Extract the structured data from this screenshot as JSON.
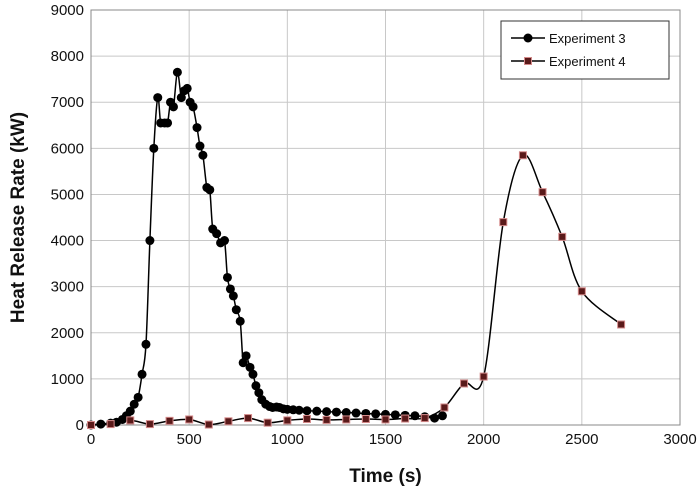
{
  "chart_data": {
    "type": "line",
    "title": "",
    "xlabel": "Time (s)",
    "ylabel": "Heat Release Rate (kW)",
    "xlim": [
      0,
      3000
    ],
    "ylim": [
      0,
      9000
    ],
    "xticks": [
      0,
      500,
      1000,
      1500,
      2000,
      2500,
      3000
    ],
    "yticks": [
      0,
      1000,
      2000,
      3000,
      4000,
      5000,
      6000,
      7000,
      8000,
      9000
    ],
    "grid": true,
    "legend_position": "top-right",
    "series": [
      {
        "name": "Experiment 3",
        "color": "#000000",
        "marker": "circle",
        "x": [
          0,
          50,
          100,
          130,
          160,
          180,
          200,
          220,
          240,
          260,
          280,
          300,
          320,
          340,
          355,
          375,
          390,
          405,
          420,
          440,
          460,
          475,
          490,
          505,
          520,
          540,
          555,
          570,
          590,
          605,
          620,
          640,
          660,
          680,
          695,
          710,
          725,
          740,
          760,
          775,
          790,
          810,
          825,
          840,
          855,
          870,
          890,
          910,
          925,
          945,
          960,
          980,
          1000,
          1030,
          1060,
          1100,
          1150,
          1200,
          1250,
          1300,
          1350,
          1400,
          1450,
          1500,
          1550,
          1600,
          1650,
          1700,
          1750,
          1790
        ],
        "y": [
          0,
          20,
          40,
          60,
          120,
          200,
          300,
          450,
          600,
          1100,
          1750,
          4000,
          6000,
          7100,
          6550,
          6550,
          6550,
          7000,
          6900,
          7650,
          7100,
          7250,
          7300,
          7000,
          6900,
          6450,
          6050,
          5850,
          5150,
          5100,
          4250,
          4150,
          3950,
          4000,
          3200,
          2950,
          2800,
          2500,
          2250,
          1350,
          1500,
          1250,
          1100,
          850,
          700,
          550,
          450,
          400,
          380,
          390,
          380,
          350,
          340,
          330,
          320,
          310,
          300,
          290,
          280,
          270,
          260,
          250,
          240,
          230,
          220,
          210,
          200,
          180,
          150,
          200
        ]
      },
      {
        "name": "Experiment 4",
        "color": "#000000",
        "marker": "square",
        "marker_fill": "#5a1a1a",
        "marker_edge": "#d48a8a",
        "x": [
          0,
          100,
          200,
          300,
          400,
          500,
          600,
          700,
          800,
          900,
          1000,
          1100,
          1200,
          1300,
          1400,
          1500,
          1600,
          1700,
          1800,
          1900,
          2000,
          2100,
          2200,
          2300,
          2400,
          2500,
          2700
        ],
        "y": [
          0,
          20,
          100,
          20,
          90,
          120,
          10,
          80,
          150,
          50,
          100,
          130,
          110,
          120,
          130,
          120,
          140,
          150,
          380,
          900,
          1050,
          4400,
          5850,
          5050,
          4080,
          2900,
          2180
        ]
      }
    ]
  }
}
